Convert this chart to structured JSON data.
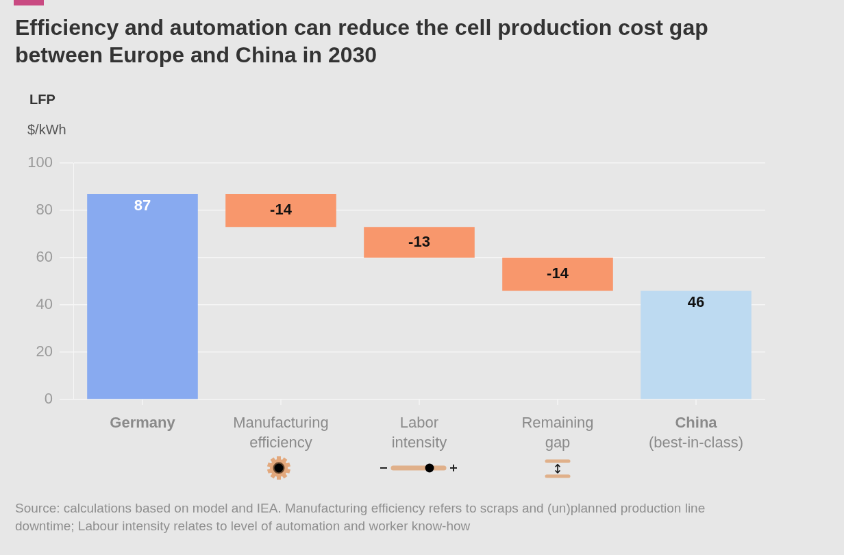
{
  "chart_data": {
    "type": "bar",
    "title": "Efficiency and automation can reduce the cell production cost gap between Europe and China in 2030",
    "subtitle": "LFP",
    "ylabel": "$/kWh",
    "categories": [
      "Germany",
      "Manufacturing efficiency",
      "Labor intensity",
      "Remaining gap",
      "China (best-in-class)"
    ],
    "values": [
      87,
      -14,
      -13,
      -14,
      46
    ],
    "base": [
      0,
      87,
      73,
      60,
      0
    ],
    "colors": [
      "#88aaf0",
      "#f8976c",
      "#f8976c",
      "#f8976c",
      "#bddaf1"
    ],
    "ylim": [
      0,
      100
    ],
    "yticks": [
      0,
      20,
      40,
      60,
      80,
      100
    ],
    "grid": "y",
    "data_labels": true,
    "annotations": [
      "Source: calculations based on model and IEA. Manufacturing efficiency refers to scraps and (un)planned production line downtime; Labour intensity relates to level of automation and worker know-how"
    ]
  }
}
